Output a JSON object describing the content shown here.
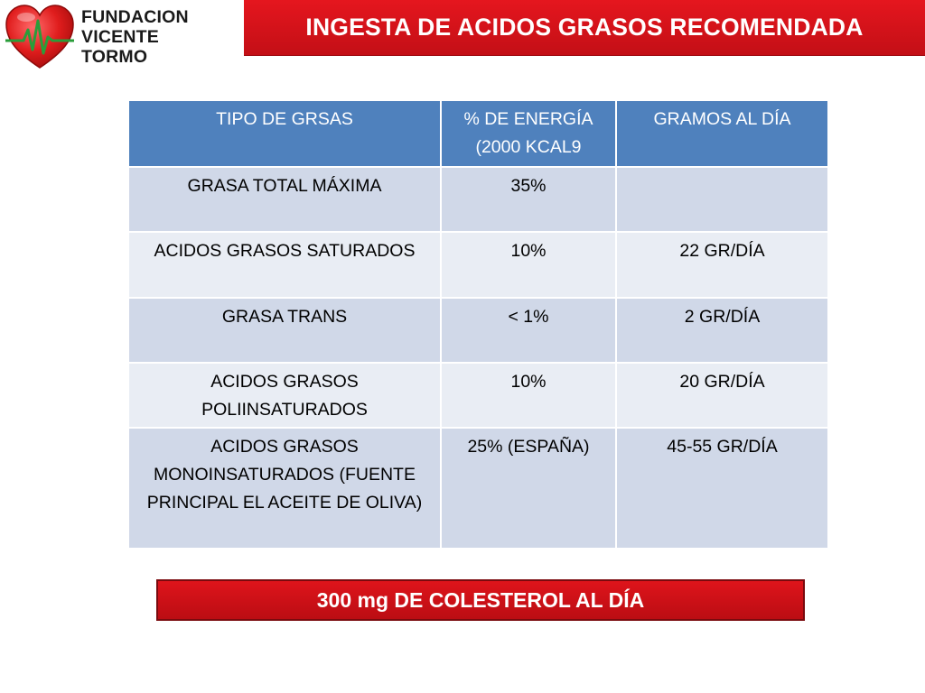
{
  "logo": {
    "line1": "FUNDACION",
    "line2": "VICENTE TORMO",
    "colors": {
      "heart": "#e02020",
      "pulse": "#2a9d3a",
      "text": "#1a1a1a"
    }
  },
  "title": "INGESTA DE ACIDOS GRASOS RECOMENDADA",
  "table": {
    "headers": [
      "TIPO DE GRSAS",
      "% DE ENERGÍA (2000 KCAL9",
      "GRAMOS AL DÍA"
    ],
    "rows": [
      [
        "GRASA TOTAL MÁXIMA",
        "35%",
        ""
      ],
      [
        "ACIDOS GRASOS SATURADOS",
        "10%",
        "22 GR/DÍA"
      ],
      [
        "GRASA TRANS",
        "< 1%",
        "2 GR/DÍA"
      ],
      [
        "ACIDOS GRASOS POLIINSATURADOS",
        "10%",
        "20 GR/DÍA"
      ],
      [
        "ACIDOS GRASOS MONOINSATURADOS (FUENTE PRINCIPAL EL ACEITE DE OLIVA)",
        "25% (ESPAÑA)",
        "45-55 GR/DÍA"
      ]
    ]
  },
  "footer_banner": "300 mg DE COLESTEROL AL DÍA",
  "colors": {
    "title_bg": "#d81219",
    "header_bg": "#4f81bd",
    "row_dark": "#d0d8e8",
    "row_light": "#e9edf4"
  }
}
